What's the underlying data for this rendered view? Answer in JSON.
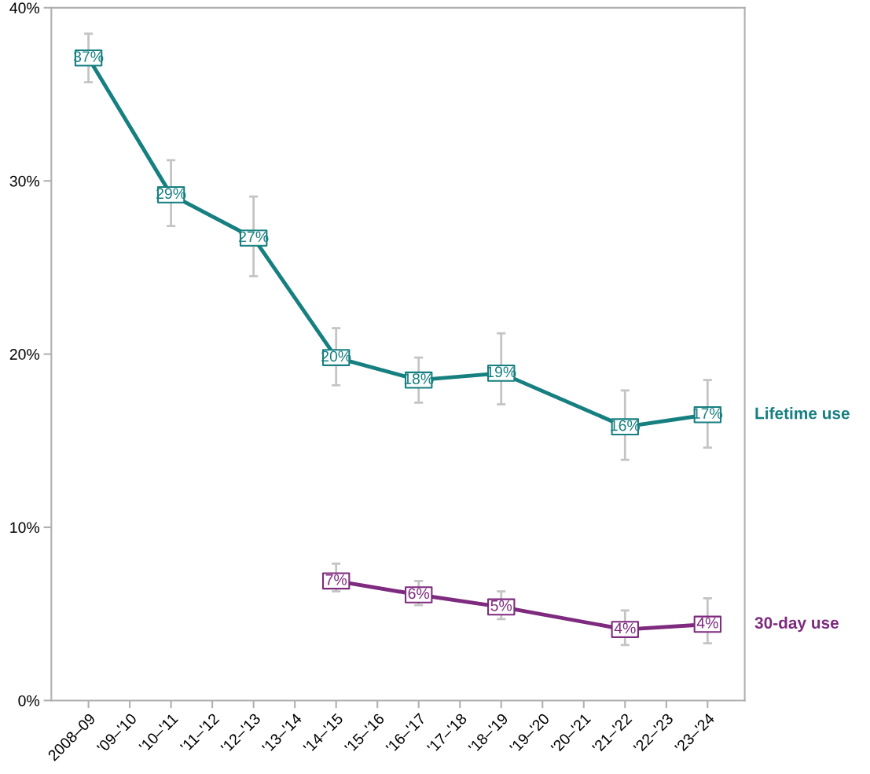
{
  "chart_data": {
    "type": "line",
    "categories": [
      "2008–09",
      "'09–'10",
      "'10–'11",
      "'11–'12",
      "'12–'13",
      "'13–'14",
      "'14–'15",
      "'15–'16",
      "'16–'17",
      "'17–'18",
      "'18–'19",
      "'19–'20",
      "'20–'21",
      "'21–'22",
      "'22–'23",
      "'23–'24"
    ],
    "series": [
      {
        "name": "Lifetime use",
        "color": "#167f80",
        "values": [
          37.1,
          null,
          29.2,
          null,
          26.7,
          null,
          19.8,
          null,
          18.5,
          null,
          18.9,
          null,
          null,
          15.8,
          null,
          16.5
        ],
        "errors": [
          [
            35.7,
            38.5
          ],
          null,
          [
            27.4,
            31.2
          ],
          null,
          [
            24.5,
            29.1
          ],
          null,
          [
            18.2,
            21.5
          ],
          null,
          [
            17.2,
            19.8
          ],
          null,
          [
            17.1,
            21.2
          ],
          null,
          null,
          [
            13.9,
            17.9
          ],
          null,
          [
            14.6,
            18.5
          ]
        ],
        "value_labels": [
          "37%",
          null,
          "29%",
          null,
          "27%",
          null,
          "20%",
          null,
          "18%",
          null,
          "19%",
          null,
          null,
          "16%",
          null,
          "17%"
        ]
      },
      {
        "name": "30-day use",
        "color": "#7e2a7e",
        "values": [
          null,
          null,
          null,
          null,
          null,
          null,
          6.9,
          null,
          6.1,
          null,
          5.4,
          null,
          null,
          4.1,
          null,
          4.4
        ],
        "errors": [
          null,
          null,
          null,
          null,
          null,
          null,
          [
            6.3,
            7.9
          ],
          null,
          [
            5.5,
            6.9
          ],
          null,
          [
            4.7,
            6.3
          ],
          null,
          null,
          [
            3.2,
            5.2
          ],
          null,
          [
            3.3,
            5.9
          ]
        ],
        "value_labels": [
          null,
          null,
          null,
          null,
          null,
          null,
          "7%",
          null,
          "6%",
          null,
          "5%",
          null,
          null,
          "4%",
          null,
          "4%"
        ]
      }
    ],
    "ylim": [
      0,
      40
    ],
    "yticks": [
      {
        "value": 0,
        "label": "0%"
      },
      {
        "value": 10,
        "label": "10%"
      },
      {
        "value": 20,
        "label": "20%"
      },
      {
        "value": 30,
        "label": "30%"
      },
      {
        "value": 40,
        "label": "40%"
      }
    ],
    "grid": false,
    "marker": "square",
    "line_style": "solid"
  }
}
